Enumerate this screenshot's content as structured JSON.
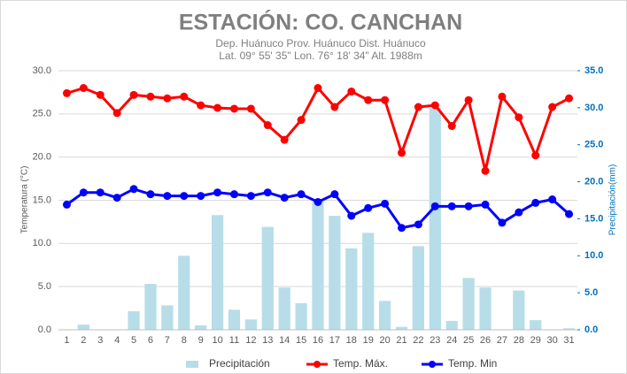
{
  "chart_data": {
    "type": "combo",
    "title": "ESTACIÓN: CO. CANCHAN",
    "subtitle": [
      "Dep. Huánuco Prov. Huánuco Dist. Huánuco",
      "Lat. 09° 55' 35\" Lon. 76° 18' 34\" Alt. 1988m"
    ],
    "y_label": "Temperatura (°C)",
    "y2_label": "Precipitación(mm)",
    "categories": [
      "1",
      "2",
      "3",
      "4",
      "5",
      "6",
      "7",
      "8",
      "9",
      "10",
      "11",
      "12",
      "13",
      "14",
      "15",
      "16",
      "17",
      "18",
      "19",
      "20",
      "21",
      "22",
      "23",
      "24",
      "25",
      "26",
      "27",
      "28",
      "29",
      "30",
      "31"
    ],
    "series": [
      {
        "name": "Precipitación",
        "type": "bar",
        "axis": "y2",
        "color": "#b7dde8",
        "values": [
          0,
          0.7,
          0,
          0,
          2.5,
          6.2,
          3.3,
          10.0,
          0.6,
          15.5,
          2.7,
          1.4,
          13.9,
          5.7,
          3.6,
          17.3,
          15.4,
          11.0,
          13.1,
          3.9,
          0.4,
          11.3,
          30.0,
          1.2,
          7.0,
          5.7,
          0,
          5.3,
          1.3,
          0,
          0.2
        ]
      },
      {
        "name": "Temp. Máx.",
        "type": "line",
        "color": "#ff0000",
        "values": [
          27.4,
          28.0,
          27.2,
          25.1,
          27.2,
          27.0,
          26.8,
          27.0,
          26.0,
          25.7,
          25.6,
          25.6,
          23.7,
          22.0,
          24.3,
          28.0,
          25.8,
          27.6,
          26.6,
          26.6,
          20.5,
          25.8,
          26.0,
          23.6,
          26.6,
          18.4,
          27.0,
          24.6,
          20.2,
          25.8,
          26.8
        ]
      },
      {
        "name": "Temp. Min",
        "type": "line",
        "color": "#0000ff",
        "values": [
          14.5,
          15.9,
          15.9,
          15.3,
          16.3,
          15.7,
          15.5,
          15.5,
          15.5,
          15.9,
          15.7,
          15.5,
          15.9,
          15.3,
          15.7,
          14.8,
          15.7,
          13.2,
          14.1,
          14.6,
          11.8,
          12.2,
          14.3,
          14.3,
          14.3,
          14.5,
          12.4,
          13.6,
          14.7,
          15.1,
          13.4
        ]
      }
    ],
    "ylim": [
      0,
      30
    ],
    "yticks": [
      {
        "value": 0,
        "label": "0.0"
      },
      {
        "value": 5,
        "label": "5.0"
      },
      {
        "value": 10,
        "label": "10.0"
      },
      {
        "value": 15,
        "label": "15.0"
      },
      {
        "value": 20,
        "label": "20.0"
      },
      {
        "value": 25,
        "label": "25.0"
      },
      {
        "value": 30,
        "label": "30.0"
      }
    ],
    "y2lim": [
      0,
      35
    ],
    "y2ticks": [
      {
        "value": 0,
        "label": "0.0"
      },
      {
        "value": 5,
        "label": "5.0"
      },
      {
        "value": 10,
        "label": "10.0"
      },
      {
        "value": 15,
        "label": "15.0"
      },
      {
        "value": 20,
        "label": "20.0"
      },
      {
        "value": 25,
        "label": "25.0"
      },
      {
        "value": 30,
        "label": "30.0"
      },
      {
        "value": 35,
        "label": "35.0"
      }
    ],
    "y2_color": "#0070c0",
    "grid": true
  }
}
